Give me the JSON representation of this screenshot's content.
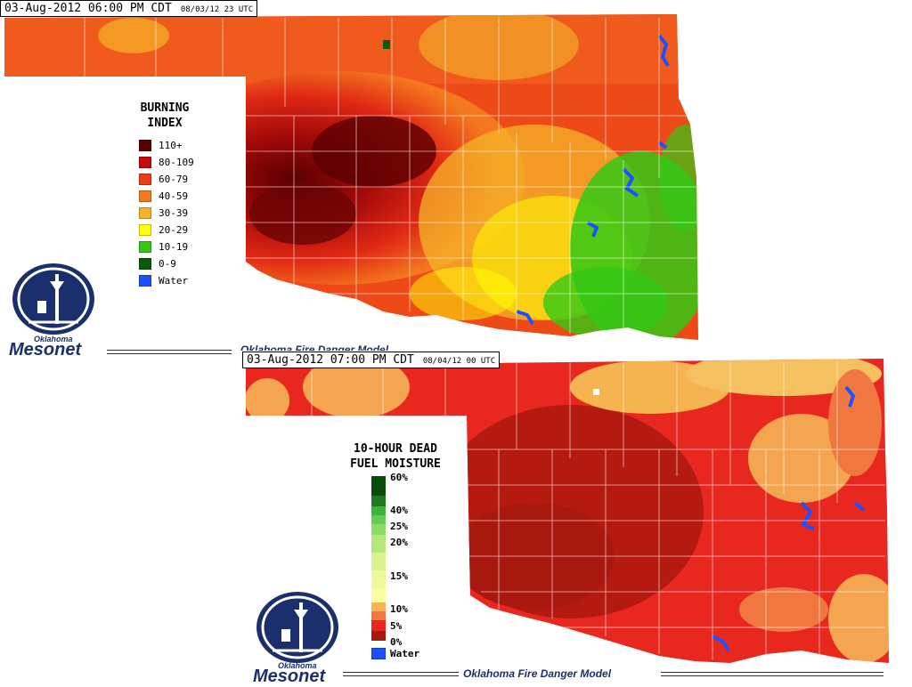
{
  "top_panel": {
    "timestamp": "03-Aug-2012 06:00 PM CDT",
    "utc": "08/03/12 23 UTC",
    "legend_title_1": "BURNING",
    "legend_title_2": "INDEX",
    "legend": [
      {
        "label": "110+",
        "color": "#5a0000"
      },
      {
        "label": "80-109",
        "color": "#c80a0a"
      },
      {
        "label": "60-79",
        "color": "#f03c14"
      },
      {
        "label": "40-59",
        "color": "#f5781e"
      },
      {
        "label": "30-39",
        "color": "#f5b428"
      },
      {
        "label": "20-29",
        "color": "#ffff00"
      },
      {
        "label": "10-19",
        "color": "#32c814"
      },
      {
        "label": "0-9",
        "color": "#0a5a0a"
      },
      {
        "label": "Water",
        "color": "#1e50ff"
      }
    ],
    "footer": "Oklahoma Fire Danger Model"
  },
  "bottom_panel": {
    "timestamp": "03-Aug-2012 07:00 PM CDT",
    "utc": "08/04/12 00 UTC",
    "legend_title_1": "10-HOUR DEAD",
    "legend_title_2": "FUEL MOISTURE",
    "scale_labels": [
      "60%",
      "40%",
      "25%",
      "20%",
      "15%",
      "10%",
      "5%",
      "0%"
    ],
    "water_label": "Water",
    "water_color": "#1e50ff",
    "footer": "Oklahoma Fire Danger Model"
  },
  "logo": {
    "line1": "Oklahoma",
    "line2": "Mesonet"
  }
}
